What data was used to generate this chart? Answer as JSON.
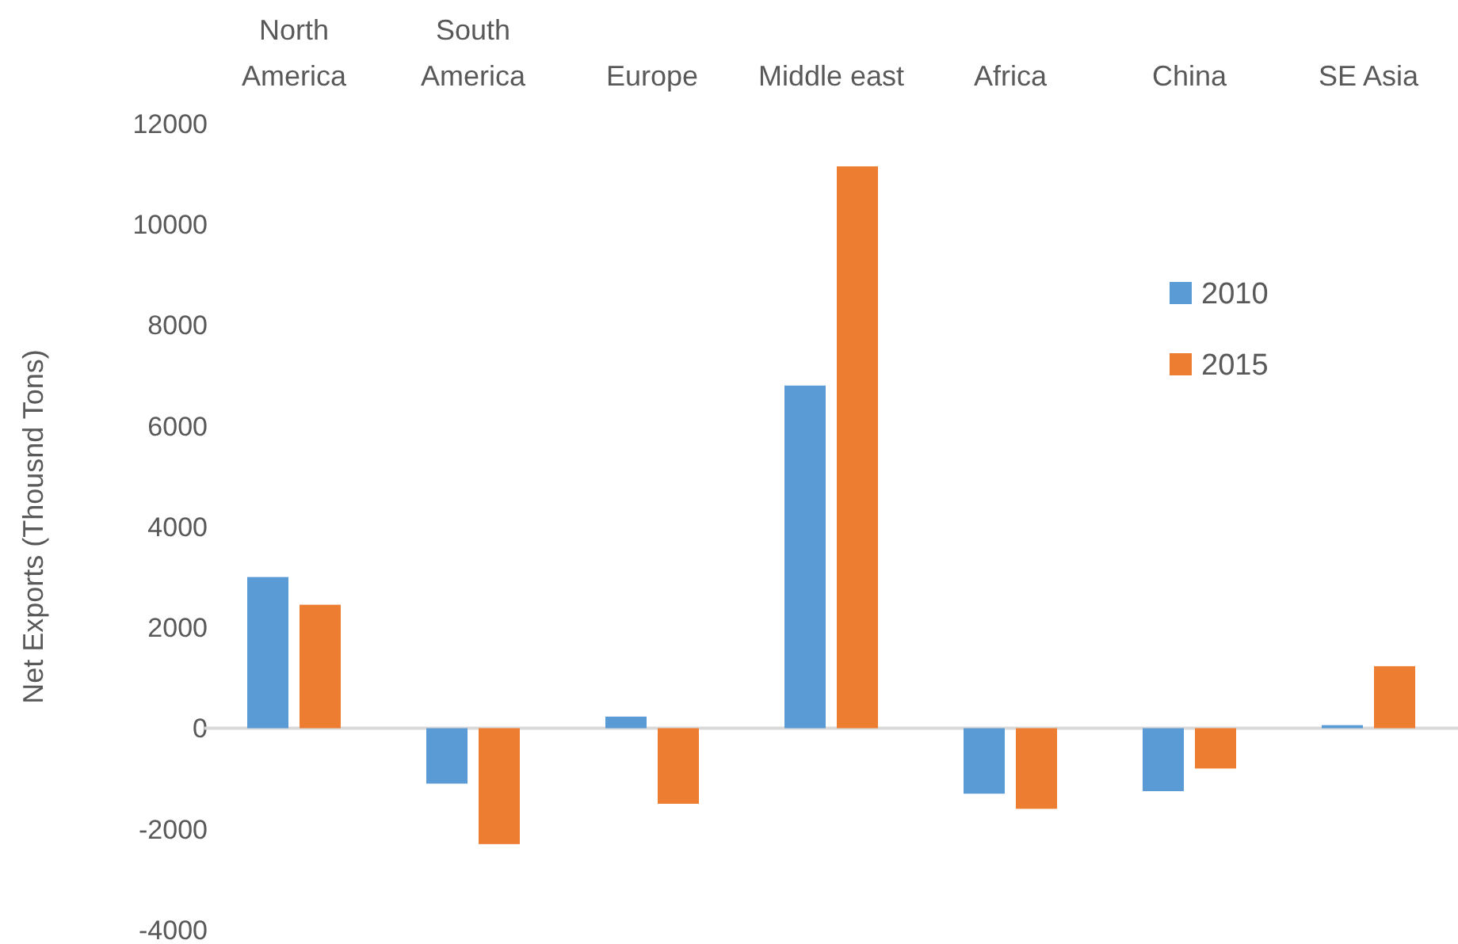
{
  "chart_data": {
    "type": "bar",
    "ylabel": "Net Exports (Thousnd Tons)",
    "categories": [
      "North America",
      "South America",
      "Europe",
      "Middle east",
      "Africa",
      "China",
      "SE Asia"
    ],
    "series": [
      {
        "name": "2010",
        "color": "#5b9bd5",
        "values": [
          3000,
          -1100,
          230,
          6800,
          -1300,
          -1250,
          60
        ]
      },
      {
        "name": "2015",
        "color": "#ed7d31",
        "values": [
          2450,
          -2300,
          -1500,
          11150,
          -1600,
          -800,
          1230
        ]
      }
    ],
    "ylim": [
      -4000,
      12000
    ],
    "yticks": [
      -4000,
      -2000,
      0,
      2000,
      4000,
      6000,
      8000,
      10000,
      12000
    ],
    "legend": "top right"
  }
}
